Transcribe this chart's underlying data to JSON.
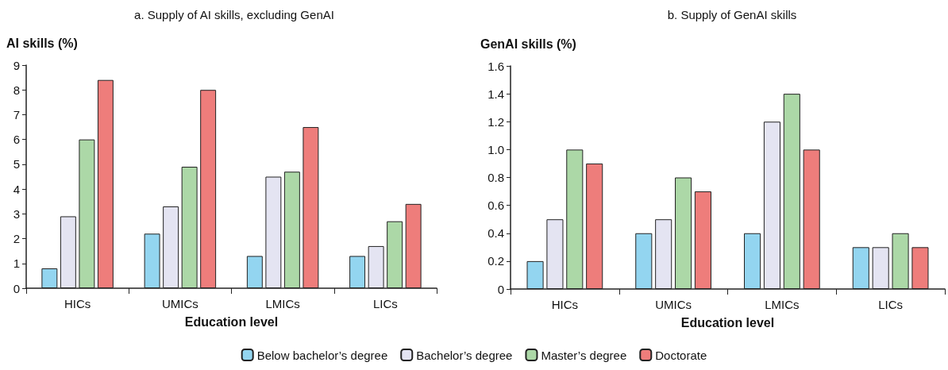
{
  "chart_data": [
    {
      "type": "bar",
      "title": "a. Supply of AI skills, excluding GenAI",
      "xlabel": "Education level",
      "ylabel": "AI skills (%)",
      "categories": [
        "HICs",
        "UMICs",
        "LMICs",
        "LICs"
      ],
      "series": [
        {
          "name": "Below bachelor’s degree",
          "color": "#93d5f0",
          "values": [
            0.8,
            2.2,
            1.3,
            1.3
          ]
        },
        {
          "name": "Bachelor’s degree",
          "color": "#e4e4f2",
          "values": [
            2.9,
            3.3,
            4.5,
            1.7
          ]
        },
        {
          "name": "Master’s degree",
          "color": "#acd8a7",
          "values": [
            6.0,
            4.9,
            4.7,
            2.7
          ]
        },
        {
          "name": "Doctorate",
          "color": "#ee7d7b",
          "values": [
            8.4,
            8.0,
            6.5,
            3.4
          ]
        }
      ],
      "ylim": [
        0,
        9
      ],
      "yticks": [
        0,
        1,
        2,
        3,
        4,
        5,
        6,
        7,
        8,
        9
      ],
      "grid": false,
      "legend": "bottom"
    },
    {
      "type": "bar",
      "title": "b. Supply of GenAI skills",
      "xlabel": "Education level",
      "ylabel": "GenAI skills (%)",
      "categories": [
        "HICs",
        "UMICs",
        "LMICs",
        "LICs"
      ],
      "series": [
        {
          "color": "#93d5f0",
          "values": [
            0.2,
            0.4,
            0.4,
            0.3
          ]
        },
        {
          "color": "#e4e4f2",
          "values": [
            0.5,
            0.5,
            1.2,
            0.3
          ]
        },
        {
          "color": "#acd8a7",
          "values": [
            1.0,
            0.8,
            1.4,
            0.4
          ]
        },
        {
          "color": "#ee7d7b",
          "values": [
            0.9,
            0.7,
            1.0,
            0.3
          ]
        }
      ],
      "ylim": [
        0,
        1.6
      ],
      "yticks": [
        0,
        {
          "value": 0.2,
          "label": "0.2"
        },
        {
          "value": 0.4,
          "label": "0.4"
        },
        {
          "value": 0.6,
          "label": "0.6"
        },
        {
          "value": 0.8,
          "label": "0.8"
        },
        {
          "value": 1.0,
          "label": "1.0"
        },
        {
          "value": 1.2,
          "label": "1.2"
        },
        {
          "value": 1.4,
          "label": "1.4"
        },
        {
          "value": 1.6,
          "label": "1.6"
        }
      ],
      "grid": false
    }
  ]
}
